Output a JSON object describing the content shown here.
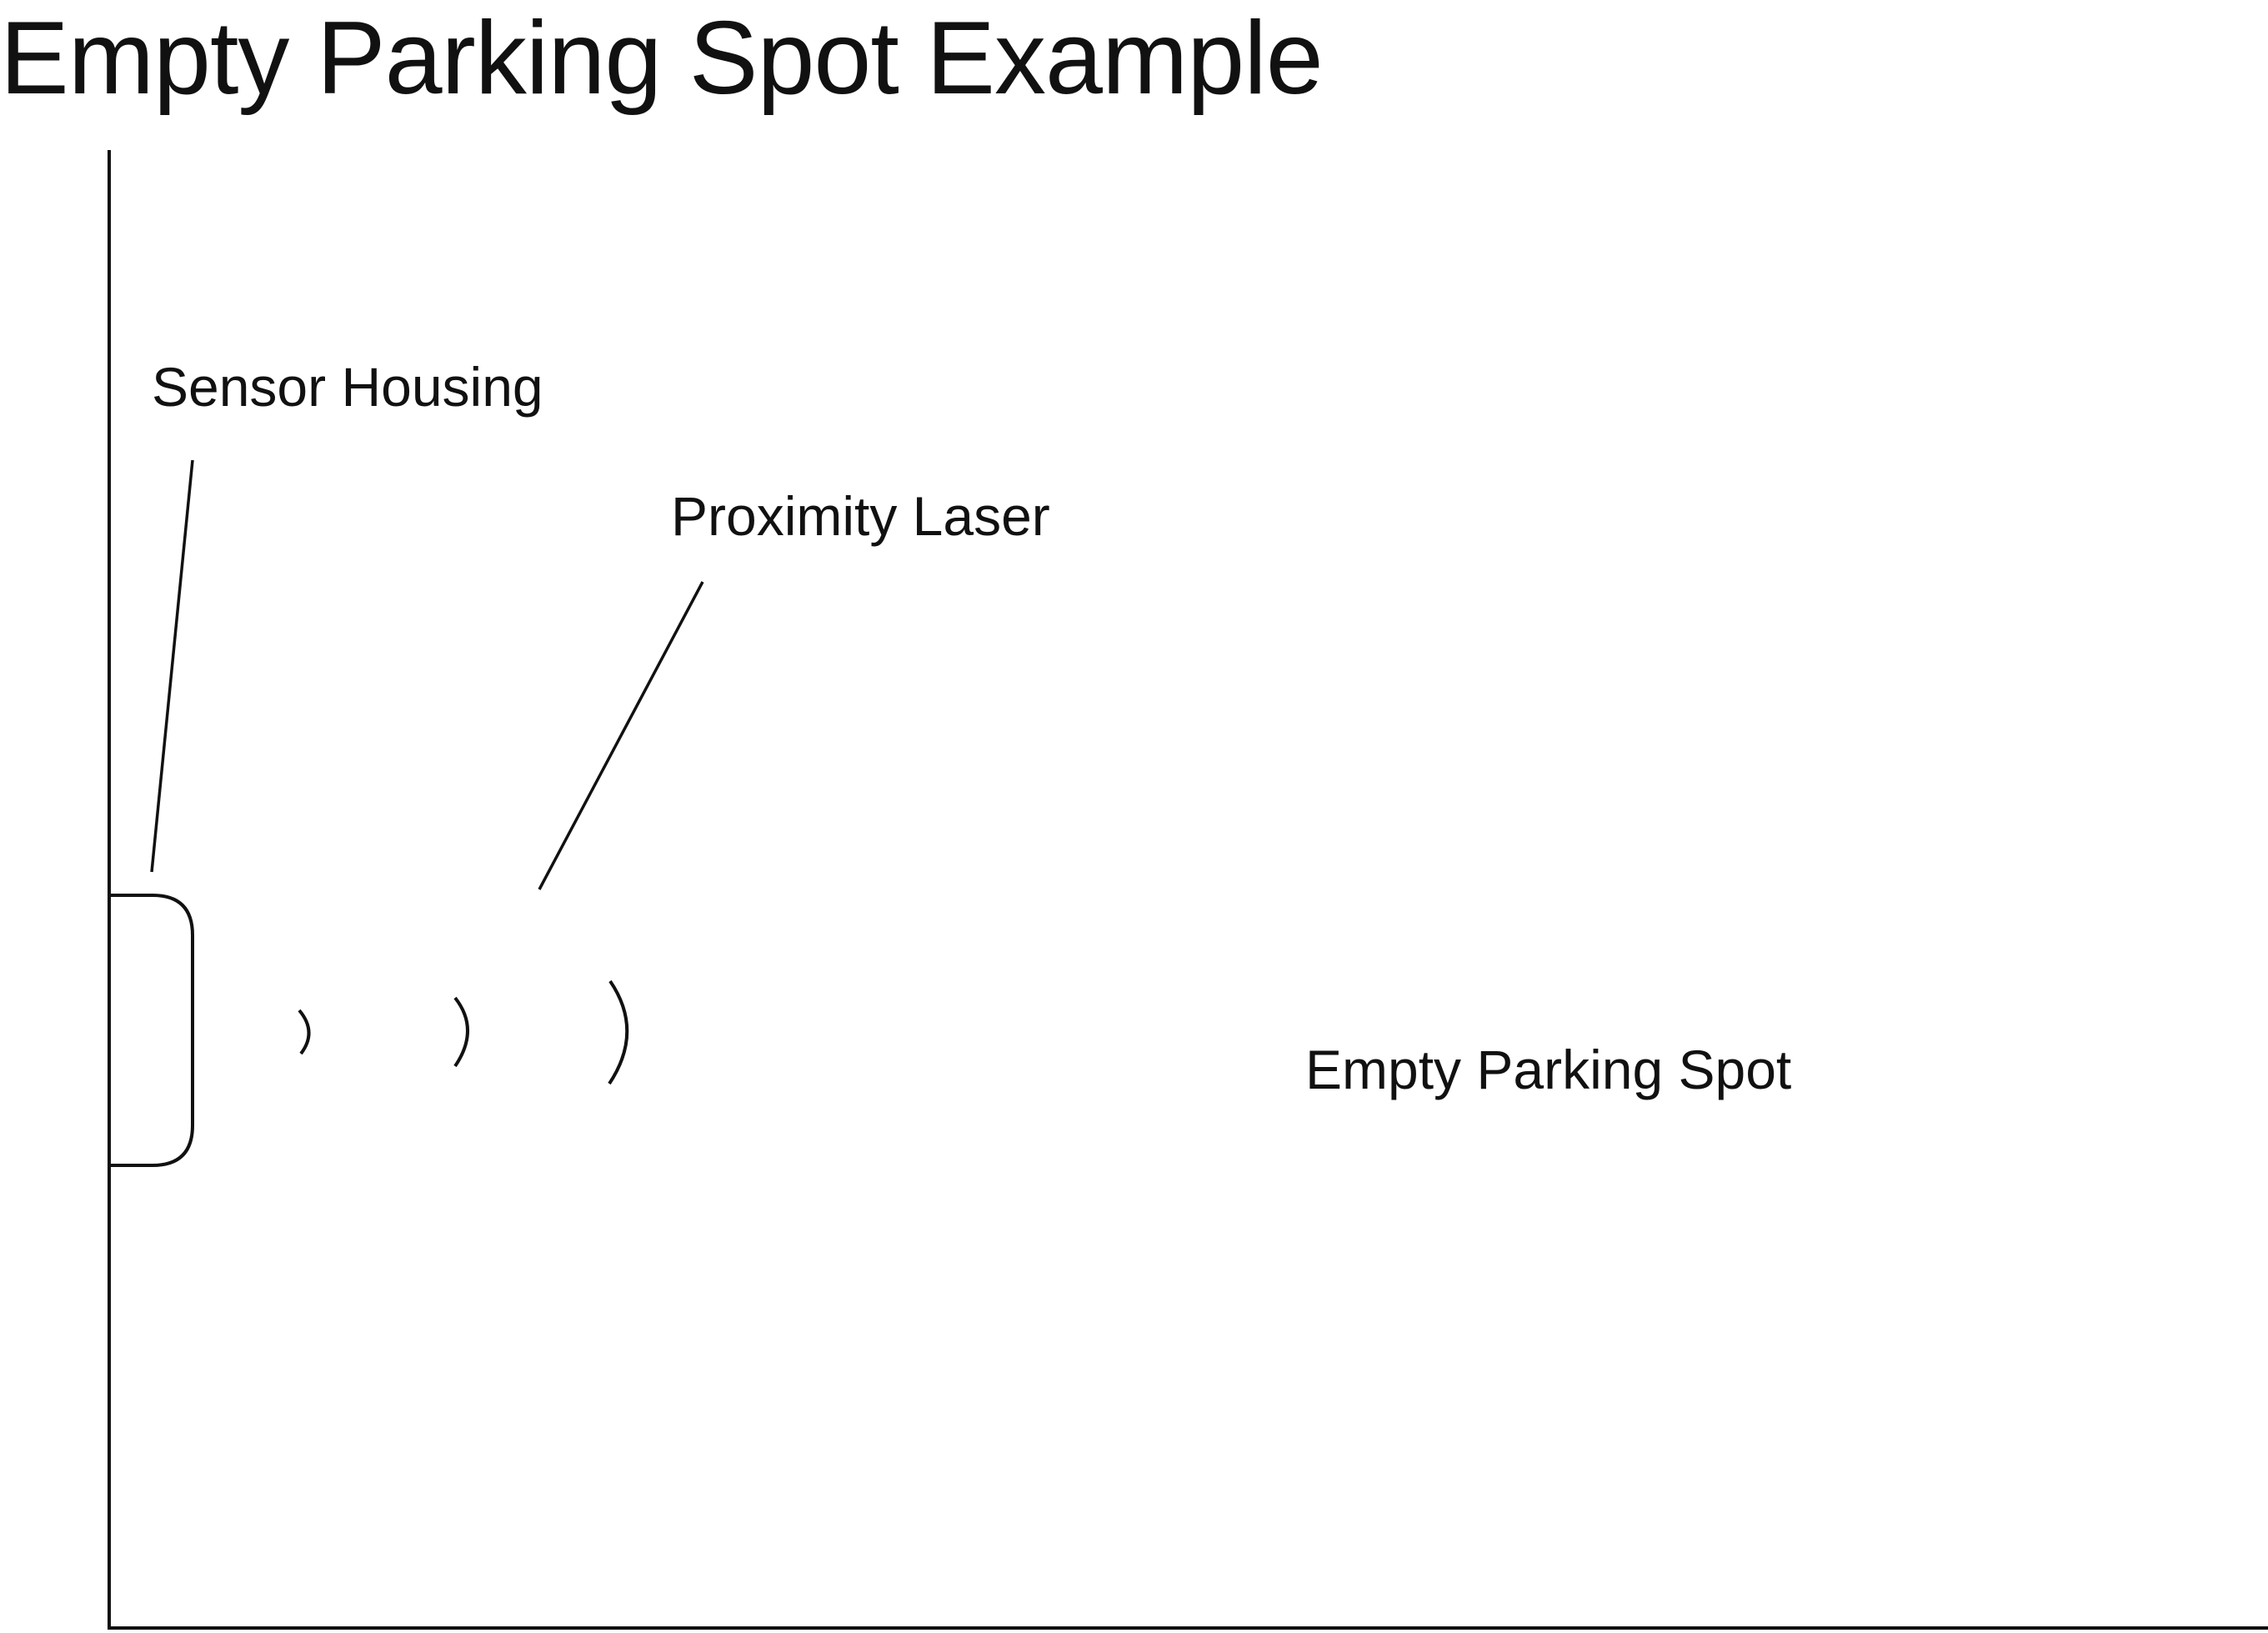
{
  "title": "Empty Parking Spot Example",
  "labels": {
    "sensor_housing": "Sensor Housing",
    "proximity_laser": "Proximity Laser",
    "empty_parking_spot": "Empty Parking Spot"
  },
  "colors": {
    "stroke": "#111111",
    "background": "#ffffff"
  }
}
